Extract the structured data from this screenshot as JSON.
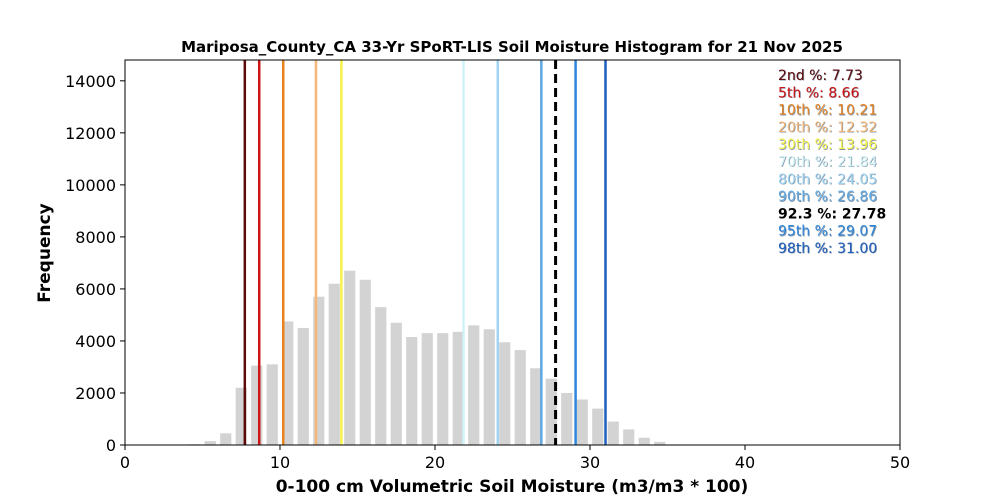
{
  "chart_data": {
    "type": "bar",
    "title": "Mariposa_County_CA 33-Yr SPoRT-LIS Soil Moisture Histogram for 21 Nov 2025",
    "xlabel": "0-100 cm Volumetric Soil Moisture (m3/m3 * 100)",
    "ylabel": "Frequency",
    "xlim": [
      0,
      50
    ],
    "ylim": [
      0,
      14800
    ],
    "xticks": [
      "0",
      "10",
      "20",
      "30",
      "40",
      "50"
    ],
    "yticks": [
      "0",
      "2000",
      "4000",
      "6000",
      "8000",
      "10000",
      "12000",
      "14000"
    ],
    "grid": false,
    "bar_color": "#d3d3d3",
    "bins": {
      "x": [
        4.5,
        5.5,
        6.5,
        7.5,
        8.5,
        9.5,
        10.5,
        11.5,
        12.5,
        13.5,
        14.5,
        15.5,
        16.5,
        17.5,
        18.5,
        19.5,
        20.5,
        21.5,
        22.5,
        23.5,
        24.5,
        25.5,
        26.5,
        27.5,
        28.5,
        29.5,
        30.5,
        31.5,
        32.5,
        33.5,
        34.5,
        35.5
      ],
      "values": [
        30,
        150,
        450,
        2200,
        3050,
        3100,
        4750,
        4500,
        5700,
        6200,
        6700,
        6350,
        5300,
        4700,
        4150,
        4300,
        4300,
        4350,
        4600,
        4450,
        3950,
        3650,
        2950,
        2550,
        2000,
        1750,
        1400,
        900,
        600,
        280,
        120,
        20
      ]
    },
    "percentile_lines": [
      {
        "label": "2nd %: 7.73",
        "value": 7.73,
        "color": "#5c0a0a",
        "dashed": false
      },
      {
        "label": "5th %: 8.66",
        "value": 8.66,
        "color": "#cc1414",
        "dashed": false
      },
      {
        "label": "10th %: 10.21",
        "value": 10.21,
        "color": "#e8821e",
        "dashed": false
      },
      {
        "label": "20th %: 12.32",
        "value": 12.32,
        "color": "#f6b878",
        "dashed": false
      },
      {
        "label": "30th %: 13.96",
        "value": 13.96,
        "color": "#f6f24a",
        "dashed": false
      },
      {
        "label": "70th %: 21.84",
        "value": 21.84,
        "color": "#d0f3f8",
        "dashed": false
      },
      {
        "label": "80th %: 24.05",
        "value": 24.05,
        "color": "#9fd4f2",
        "dashed": false
      },
      {
        "label": "90th %: 26.86",
        "value": 26.86,
        "color": "#5fa8e0",
        "dashed": false
      },
      {
        "label": "92.3 %: 27.78",
        "value": 27.78,
        "color": "#000000",
        "dashed": true
      },
      {
        "label": "95th %: 29.07",
        "value": 29.07,
        "color": "#2c86dc",
        "dashed": false
      },
      {
        "label": "98th %: 31.00",
        "value": 31.0,
        "color": "#1f5fbd",
        "dashed": false
      }
    ],
    "legend_placement": "top-right"
  }
}
